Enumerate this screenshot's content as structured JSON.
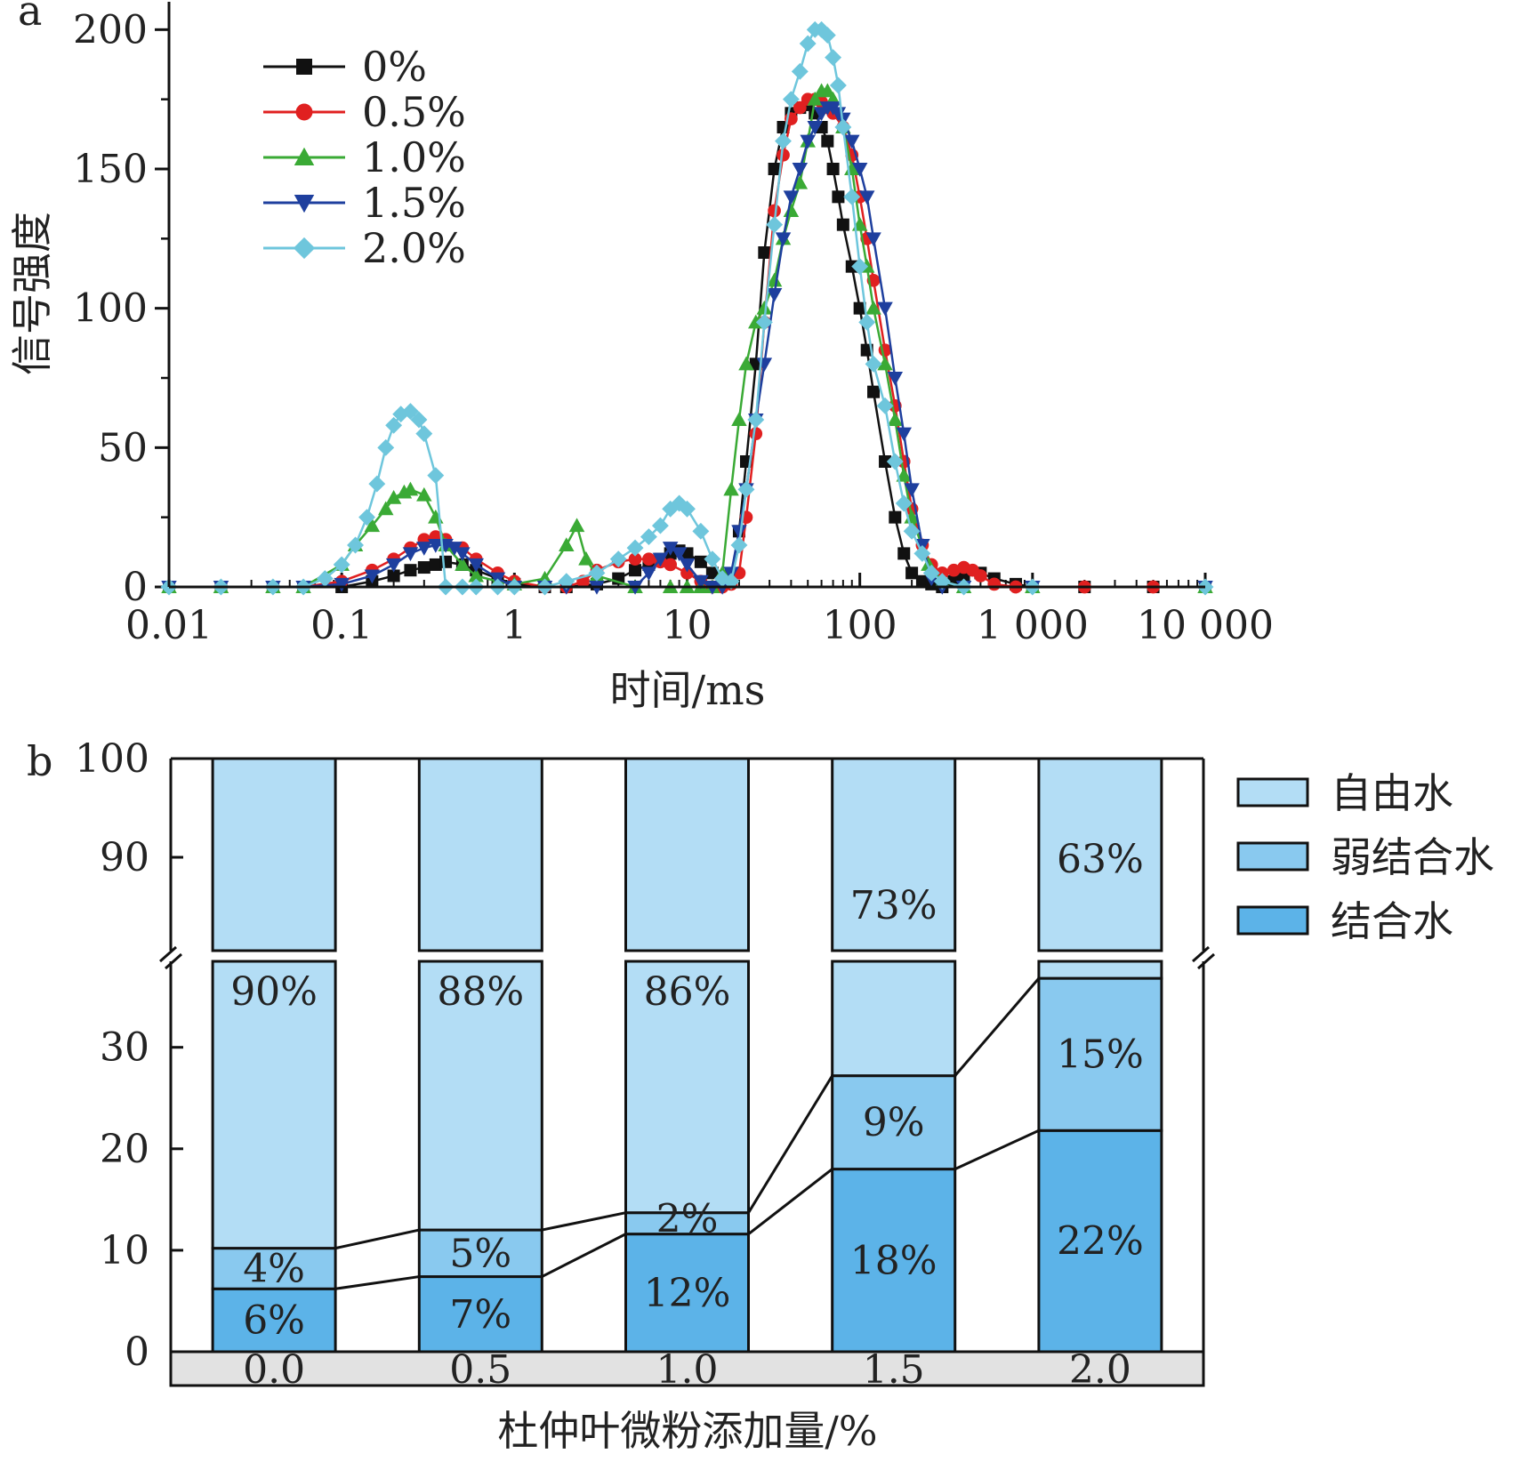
{
  "chart_data": [
    {
      "type": "line",
      "panel": "a",
      "xlabel": "时间/ms",
      "ylabel": "信号强度",
      "x_scale": "log",
      "xlim": [
        0.01,
        10000
      ],
      "ylim": [
        0,
        210
      ],
      "x_ticks": [
        0.01,
        0.1,
        1,
        10,
        100,
        1000,
        10000
      ],
      "x_tick_labels": [
        "0.01",
        "0.1",
        "1",
        "10",
        "100",
        "1 000",
        "10 000"
      ],
      "y_ticks": [
        0,
        50,
        100,
        150,
        200
      ],
      "y_tick_labels": [
        "0",
        "50",
        "100",
        "150",
        "200"
      ],
      "legend_position": "top-left",
      "series": [
        {
          "name": "0%",
          "color": "#111111",
          "marker": "square",
          "x": [
            0.01,
            0.02,
            0.04,
            0.06,
            0.1,
            0.15,
            0.2,
            0.25,
            0.3,
            0.35,
            0.4,
            0.5,
            0.6,
            0.8,
            1,
            1.5,
            2,
            3,
            4,
            5,
            6,
            7,
            8,
            9,
            10,
            12,
            14,
            16,
            18,
            20,
            22,
            25,
            28,
            32,
            36,
            40,
            45,
            50,
            55,
            60,
            65,
            70,
            75,
            80,
            90,
            100,
            110,
            120,
            140,
            160,
            180,
            200,
            230,
            260,
            300,
            350,
            400,
            500,
            600,
            800,
            1000,
            2000,
            5000,
            10000
          ],
          "y": [
            0,
            0,
            0,
            0,
            0,
            2,
            4,
            6,
            7,
            8,
            9,
            8,
            6,
            3,
            1,
            0,
            0,
            1,
            3,
            6,
            8,
            10,
            12,
            13,
            12,
            9,
            5,
            2,
            4,
            20,
            45,
            80,
            120,
            150,
            165,
            170,
            172,
            173,
            170,
            165,
            160,
            150,
            140,
            130,
            115,
            100,
            85,
            70,
            45,
            25,
            12,
            5,
            2,
            1,
            0,
            2,
            4,
            5,
            3,
            1,
            0,
            0,
            0,
            0
          ]
        },
        {
          "name": "0.5%",
          "color": "#e02020",
          "marker": "circle",
          "x": [
            0.01,
            0.02,
            0.04,
            0.06,
            0.1,
            0.15,
            0.2,
            0.25,
            0.3,
            0.35,
            0.4,
            0.5,
            0.6,
            0.8,
            1,
            1.5,
            2,
            2.5,
            3,
            4,
            5,
            6,
            7,
            8,
            10,
            12,
            14,
            16,
            18,
            20,
            22,
            25,
            28,
            32,
            36,
            40,
            45,
            50,
            55,
            60,
            65,
            70,
            80,
            90,
            100,
            110,
            120,
            140,
            160,
            180,
            200,
            230,
            260,
            300,
            350,
            400,
            450,
            500,
            600,
            800,
            1000,
            2000,
            5000,
            10000
          ],
          "y": [
            0,
            0,
            0,
            0,
            2,
            6,
            10,
            14,
            17,
            18,
            17,
            14,
            10,
            5,
            2,
            0,
            0,
            2,
            6,
            9,
            10,
            10,
            9,
            8,
            5,
            2,
            0,
            0,
            1,
            5,
            25,
            55,
            95,
            135,
            155,
            168,
            172,
            175,
            175,
            174,
            172,
            170,
            165,
            155,
            140,
            125,
            110,
            85,
            65,
            45,
            28,
            15,
            8,
            5,
            6,
            7,
            6,
            4,
            1,
            0,
            0,
            0,
            0,
            0
          ]
        },
        {
          "name": "1.0%",
          "color": "#3aaa35",
          "marker": "triangle-up",
          "x": [
            0.01,
            0.02,
            0.04,
            0.06,
            0.1,
            0.12,
            0.15,
            0.18,
            0.2,
            0.23,
            0.25,
            0.3,
            0.35,
            0.4,
            0.5,
            0.6,
            0.8,
            1,
            1.5,
            2,
            2.3,
            2.6,
            3,
            5,
            8,
            10,
            12,
            14,
            16,
            18,
            20,
            22,
            25,
            28,
            32,
            36,
            40,
            45,
            50,
            55,
            60,
            65,
            70,
            80,
            90,
            100,
            110,
            120,
            140,
            160,
            180,
            200,
            250,
            300,
            400,
            1000,
            10000
          ],
          "y": [
            0,
            0,
            0,
            0,
            8,
            15,
            22,
            28,
            32,
            34,
            35,
            33,
            25,
            15,
            8,
            4,
            2,
            1,
            3,
            15,
            22,
            10,
            4,
            0,
            0,
            0,
            0,
            0,
            5,
            35,
            60,
            80,
            95,
            100,
            110,
            125,
            135,
            145,
            160,
            175,
            178,
            178,
            175,
            165,
            150,
            130,
            115,
            100,
            80,
            60,
            40,
            25,
            8,
            2,
            0,
            0,
            0
          ]
        },
        {
          "name": "1.5%",
          "color": "#1e3f9e",
          "marker": "triangle-down",
          "x": [
            0.01,
            0.02,
            0.04,
            0.06,
            0.1,
            0.15,
            0.2,
            0.25,
            0.3,
            0.35,
            0.4,
            0.45,
            0.5,
            0.6,
            0.8,
            1,
            1.5,
            2,
            3,
            5,
            6,
            7,
            8,
            9,
            10,
            12,
            14,
            16,
            18,
            20,
            22,
            25,
            28,
            32,
            36,
            40,
            45,
            50,
            55,
            60,
            65,
            70,
            75,
            80,
            90,
            100,
            110,
            120,
            140,
            160,
            180,
            200,
            230,
            260,
            300,
            400,
            1000,
            10000
          ],
          "y": [
            0,
            0,
            0,
            0,
            1,
            4,
            8,
            12,
            14,
            15,
            15,
            14,
            12,
            8,
            3,
            0,
            0,
            0,
            0,
            0,
            5,
            10,
            14,
            12,
            8,
            2,
            0,
            0,
            5,
            20,
            35,
            60,
            80,
            105,
            125,
            140,
            150,
            160,
            165,
            170,
            172,
            172,
            170,
            168,
            160,
            150,
            140,
            125,
            100,
            75,
            55,
            35,
            15,
            3,
            0,
            0,
            0,
            0
          ]
        },
        {
          "name": "2.0%",
          "color": "#6ec6dc",
          "marker": "diamond",
          "x": [
            0.01,
            0.02,
            0.04,
            0.06,
            0.08,
            0.1,
            0.12,
            0.14,
            0.16,
            0.18,
            0.2,
            0.22,
            0.25,
            0.28,
            0.3,
            0.35,
            0.4,
            0.5,
            0.6,
            0.8,
            1,
            1.5,
            2,
            3,
            4,
            5,
            6,
            7,
            8,
            9,
            10,
            12,
            14,
            16,
            18,
            20,
            22,
            25,
            28,
            32,
            36,
            40,
            45,
            50,
            55,
            60,
            65,
            70,
            75,
            80,
            90,
            100,
            110,
            120,
            140,
            160,
            180,
            200,
            230,
            260,
            300,
            400,
            1000,
            10000
          ],
          "y": [
            0,
            0,
            0,
            0,
            3,
            8,
            15,
            25,
            37,
            50,
            58,
            62,
            63,
            60,
            55,
            40,
            0,
            0,
            0,
            0,
            0,
            0,
            2,
            5,
            10,
            14,
            18,
            22,
            28,
            30,
            28,
            20,
            10,
            3,
            2,
            15,
            35,
            60,
            95,
            130,
            160,
            175,
            185,
            195,
            200,
            200,
            198,
            190,
            180,
            165,
            140,
            115,
            95,
            80,
            65,
            45,
            30,
            20,
            12,
            5,
            2,
            0,
            0,
            0
          ]
        }
      ]
    },
    {
      "type": "bar",
      "stacked": true,
      "panel": "b",
      "xlabel": "杜仲叶微粉添加量/%",
      "categories": [
        "0.0",
        "0.5",
        "1.0",
        "1.5",
        "2.0"
      ],
      "y_axis_break": true,
      "ylim_lower": [
        0,
        39
      ],
      "ylim_upper": [
        80,
        100
      ],
      "y_ticks_lower": [
        0,
        10,
        20,
        30
      ],
      "y_ticks_upper": [
        90,
        100
      ],
      "legend_position": "right",
      "series": [
        {
          "name": "结合水",
          "color": "#5cb3e8",
          "values": [
            6.2,
            7.4,
            11.6,
            18,
            21.8
          ],
          "labels": [
            "6%",
            "7%",
            "12%",
            "18%",
            "22%"
          ]
        },
        {
          "name": "弱结合水",
          "color": "#89c9ef",
          "values": [
            4,
            4.6,
            2.1,
            9.2,
            15
          ],
          "labels": [
            "4%",
            "5%",
            "2%",
            "9%",
            "15%"
          ]
        },
        {
          "name": "自由水",
          "color": "#b3ddf5",
          "values": [
            89.8,
            88,
            86.3,
            72.8,
            63.2
          ],
          "labels": [
            "90%",
            "88%",
            "86%",
            "73%",
            "63%"
          ]
        }
      ],
      "label_in_upper_segment": [
        false,
        false,
        false,
        true,
        true
      ]
    }
  ]
}
